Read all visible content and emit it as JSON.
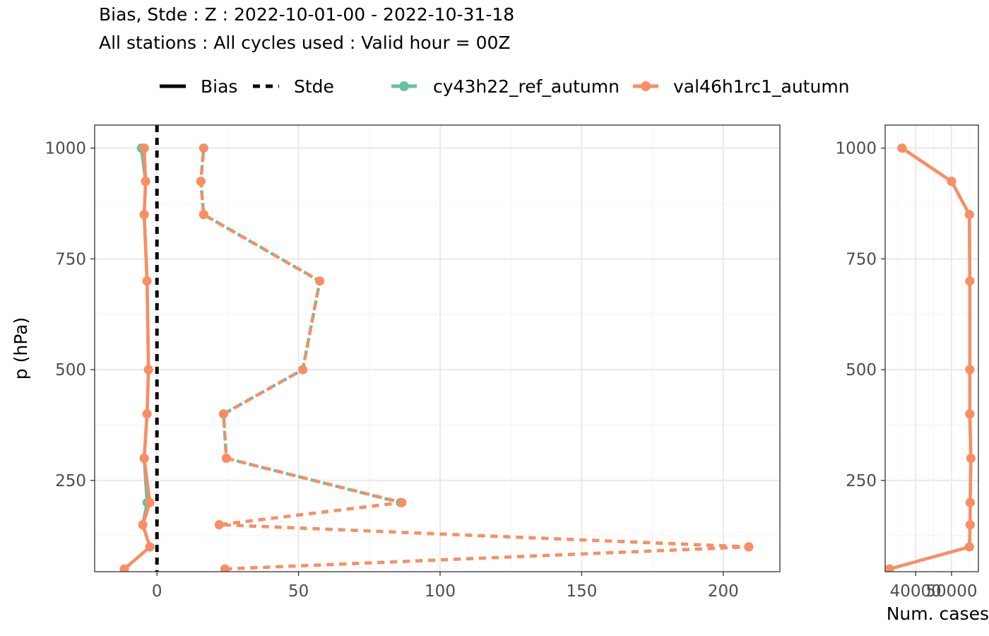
{
  "title": {
    "line1": "Bias, Stde : Z : 2022-10-01-00 - 2022-10-31-18",
    "line2": "All stations : All cycles used : Valid hour = 00Z"
  },
  "legend": {
    "linetype_items": [
      {
        "label": "Bias",
        "style": "solid"
      },
      {
        "label": "Stde",
        "style": "dashed"
      }
    ],
    "color_items": [
      {
        "label": "cy43h22_ref_autumn",
        "color": "#66c2a5"
      },
      {
        "label": "val46h1rc1_autumn",
        "color": "#fc8d62"
      }
    ]
  },
  "colors": {
    "ref": "#66c2a5",
    "val": "#fc8d62",
    "zero_line": "#000000",
    "grid_major": "#ebebeb",
    "grid_minor": "#f4f4f4",
    "panel_border": "#333333",
    "tick_text": "#4d4d4d"
  },
  "chart_data": [
    {
      "type": "line",
      "panel": "bias-stde",
      "ylabel": "p (hPa)",
      "xlabel": "",
      "xlim": [
        -22,
        220
      ],
      "ylim": [
        1052,
        44
      ],
      "y_reversed": true,
      "x_ticks": [
        0,
        50,
        100,
        150,
        200
      ],
      "x_tick_labels": [
        "0",
        "50",
        "100",
        "150",
        "200"
      ],
      "y_ticks": [
        250,
        500,
        750,
        1000
      ],
      "y_tick_labels": [
        "250",
        "500",
        "750",
        "1000"
      ],
      "pressure_levels": [
        50,
        100,
        150,
        200,
        300,
        400,
        500,
        700,
        850,
        925,
        1000
      ],
      "zero_line": 0,
      "series": [
        {
          "name": "cy43h22_ref_autumn",
          "metric": "Bias",
          "linestyle": "solid",
          "color": "#66c2a5",
          "values": [
            -11.5,
            -2.5,
            -5,
            -3.5,
            -4.5,
            -3.5,
            -3,
            -3.5,
            -4.5,
            -4,
            -5.5
          ]
        },
        {
          "name": "val46h1rc1_autumn",
          "metric": "Bias",
          "linestyle": "solid",
          "color": "#fc8d62",
          "values": [
            -11.5,
            -2.5,
            -5,
            -2.5,
            -4.5,
            -3.5,
            -3,
            -3.5,
            -4.5,
            -4,
            -4.5
          ]
        },
        {
          "name": "cy43h22_ref_autumn",
          "metric": "Stde",
          "linestyle": "dashed",
          "color": "#66c2a5",
          "values": [
            24,
            209,
            22,
            86,
            24.5,
            23.5,
            51.5,
            57.5,
            16.5,
            15.5,
            16.5
          ]
        },
        {
          "name": "val46h1rc1_autumn",
          "metric": "Stde",
          "linestyle": "dashed",
          "color": "#fc8d62",
          "values": [
            24,
            209,
            22,
            86.5,
            24.5,
            23.5,
            51.5,
            57.5,
            16.5,
            15.5,
            16.5
          ]
        }
      ]
    },
    {
      "type": "line",
      "panel": "num-cases",
      "xlabel": "Num. cases",
      "xlim": [
        31500,
        57500
      ],
      "ylim": [
        1052,
        44
      ],
      "y_reversed": true,
      "x_ticks": [
        40000,
        50000
      ],
      "x_tick_labels": [
        "40000",
        "50000"
      ],
      "y_ticks": [
        250,
        500,
        750,
        1000
      ],
      "y_tick_labels": [
        "250",
        "500",
        "750",
        "1000"
      ],
      "pressure_levels": [
        50,
        100,
        150,
        200,
        300,
        400,
        500,
        700,
        850,
        925,
        1000
      ],
      "series": [
        {
          "name": "cy43h22_ref_autumn",
          "color": "#66c2a5",
          "values": [
            32700,
            55000,
            55200,
            55200,
            55400,
            55100,
            55100,
            55100,
            55000,
            50000,
            36200
          ]
        },
        {
          "name": "val46h1rc1_autumn",
          "color": "#fc8d62",
          "values": [
            32700,
            55000,
            55200,
            55200,
            55400,
            55100,
            55100,
            55100,
            55000,
            50000,
            36200
          ]
        }
      ]
    }
  ]
}
